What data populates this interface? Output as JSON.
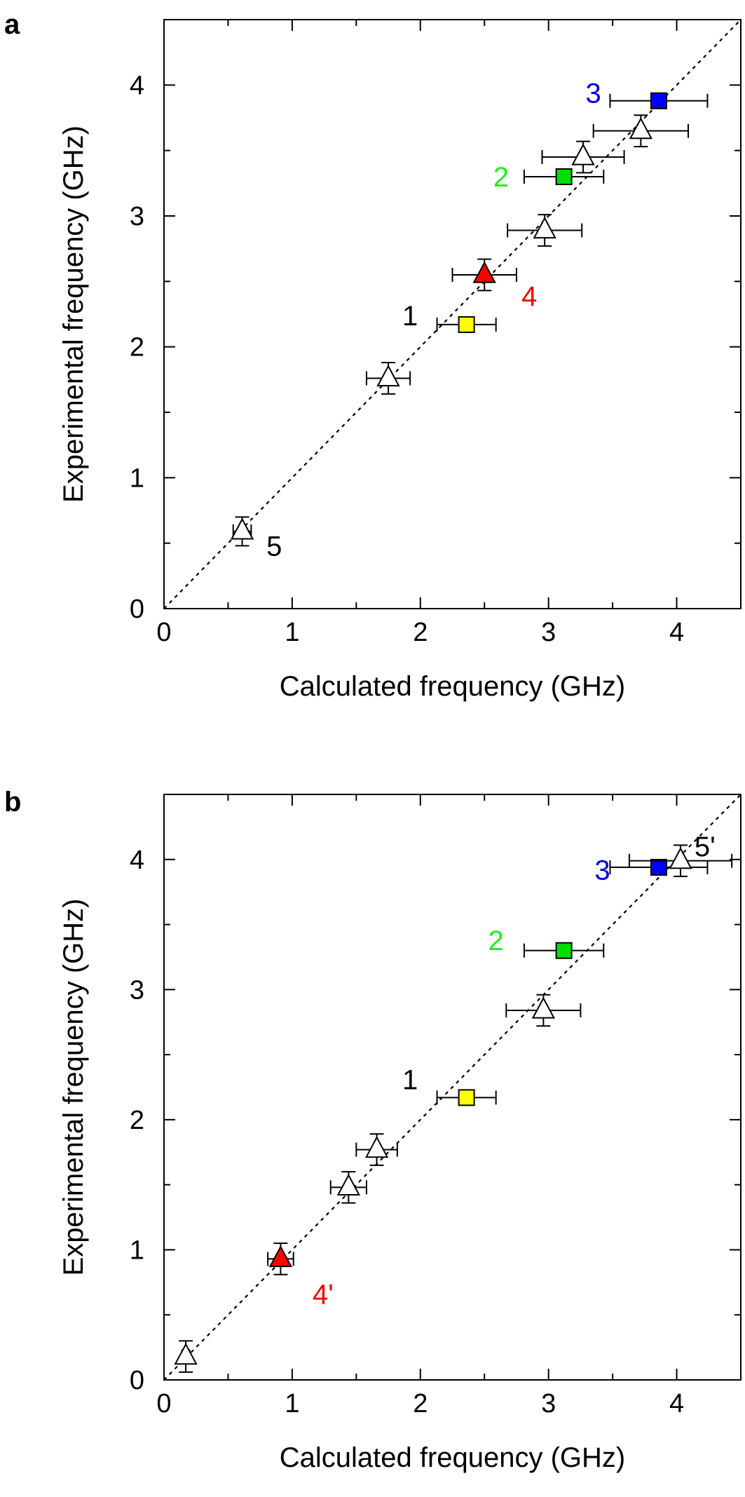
{
  "colors": {
    "open": "#ffffff",
    "yellow": "#ffff00",
    "green": "#00dd00",
    "blue": "#0000ff",
    "red": "#ff0000",
    "text_green": "#22ee22",
    "text_blue": "#0000dd",
    "text_red": "#ee0000",
    "text_black": "#000000"
  },
  "chart_data": [
    {
      "panel": "a",
      "type": "scatter",
      "xlabel": "Calculated frequency (GHz)",
      "ylabel": "Experimental frequency (GHz)",
      "xlim": [
        0,
        4.5
      ],
      "ylim": [
        0,
        4.5
      ],
      "xticks": [
        0,
        1,
        2,
        3,
        4
      ],
      "yticks": [
        0,
        1,
        2,
        3,
        4
      ],
      "diagonal": "dashed y=x",
      "grid": false,
      "points": [
        {
          "x": 0.61,
          "y": 0.59,
          "xerr": 0.07,
          "yerr": 0.11,
          "marker": "triangle",
          "color": "open"
        },
        {
          "x": 1.75,
          "y": 1.76,
          "xerr": 0.17,
          "yerr": 0.12,
          "marker": "triangle",
          "color": "open"
        },
        {
          "x": 2.36,
          "y": 2.17,
          "xerr": 0.23,
          "yerr": 0.0,
          "marker": "square",
          "color": "yellow"
        },
        {
          "x": 2.5,
          "y": 2.55,
          "xerr": 0.25,
          "yerr": 0.12,
          "marker": "triangle",
          "color": "red"
        },
        {
          "x": 2.97,
          "y": 2.89,
          "xerr": 0.29,
          "yerr": 0.12,
          "marker": "triangle",
          "color": "open"
        },
        {
          "x": 3.12,
          "y": 3.3,
          "xerr": 0.31,
          "yerr": 0.05,
          "marker": "square",
          "color": "green"
        },
        {
          "x": 3.27,
          "y": 3.45,
          "xerr": 0.32,
          "yerr": 0.12,
          "marker": "triangle",
          "color": "open"
        },
        {
          "x": 3.72,
          "y": 3.65,
          "xerr": 0.37,
          "yerr": 0.12,
          "marker": "triangle",
          "color": "open"
        },
        {
          "x": 3.86,
          "y": 3.88,
          "xerr": 0.38,
          "yerr": 0.0,
          "marker": "square",
          "color": "blue"
        }
      ],
      "annotations": [
        {
          "text": "1",
          "x": 1.92,
          "y": 2.24,
          "color": "text_black"
        },
        {
          "text": "2",
          "x": 2.63,
          "y": 3.3,
          "color": "text_green"
        },
        {
          "text": "3",
          "x": 3.35,
          "y": 3.94,
          "color": "text_blue"
        },
        {
          "text": "4",
          "x": 2.85,
          "y": 2.39,
          "color": "text_red"
        },
        {
          "text": "5",
          "x": 0.86,
          "y": 0.48,
          "color": "text_black"
        }
      ]
    },
    {
      "panel": "b",
      "type": "scatter",
      "xlabel": "Calculated frequency (GHz)",
      "ylabel": "Experimental frequency (GHz)",
      "xlim": [
        0,
        4.5
      ],
      "ylim": [
        0,
        4.5
      ],
      "xticks": [
        0,
        1,
        2,
        3,
        4
      ],
      "yticks": [
        0,
        1,
        2,
        3,
        4
      ],
      "diagonal": "dashed y=x",
      "grid": false,
      "points": [
        {
          "x": 0.17,
          "y": 0.18,
          "xerr": 0.03,
          "yerr": 0.12,
          "marker": "triangle",
          "color": "open"
        },
        {
          "x": 0.91,
          "y": 0.93,
          "xerr": 0.1,
          "yerr": 0.12,
          "marker": "triangle",
          "color": "red"
        },
        {
          "x": 1.44,
          "y": 1.48,
          "xerr": 0.14,
          "yerr": 0.12,
          "marker": "triangle",
          "color": "open"
        },
        {
          "x": 1.66,
          "y": 1.77,
          "xerr": 0.16,
          "yerr": 0.12,
          "marker": "triangle",
          "color": "open"
        },
        {
          "x": 2.36,
          "y": 2.17,
          "xerr": 0.23,
          "yerr": 0.0,
          "marker": "square",
          "color": "yellow"
        },
        {
          "x": 2.96,
          "y": 2.84,
          "xerr": 0.29,
          "yerr": 0.12,
          "marker": "triangle",
          "color": "open"
        },
        {
          "x": 3.12,
          "y": 3.3,
          "xerr": 0.31,
          "yerr": 0.0,
          "marker": "square",
          "color": "green"
        },
        {
          "x": 3.86,
          "y": 3.94,
          "xerr": 0.38,
          "yerr": 0.0,
          "marker": "square",
          "color": "blue"
        },
        {
          "x": 4.03,
          "y": 3.99,
          "xerr": 0.4,
          "yerr": 0.12,
          "marker": "triangle",
          "color": "open"
        }
      ],
      "annotations": [
        {
          "text": "1",
          "x": 1.92,
          "y": 2.31,
          "color": "text_black"
        },
        {
          "text": "2",
          "x": 2.59,
          "y": 3.38,
          "color": "text_green"
        },
        {
          "text": "3",
          "x": 3.42,
          "y": 3.92,
          "color": "text_blue"
        },
        {
          "text": "4'",
          "x": 1.24,
          "y": 0.66,
          "color": "text_red"
        },
        {
          "text": "5'",
          "x": 4.22,
          "y": 4.1,
          "color": "text_black"
        }
      ]
    }
  ]
}
